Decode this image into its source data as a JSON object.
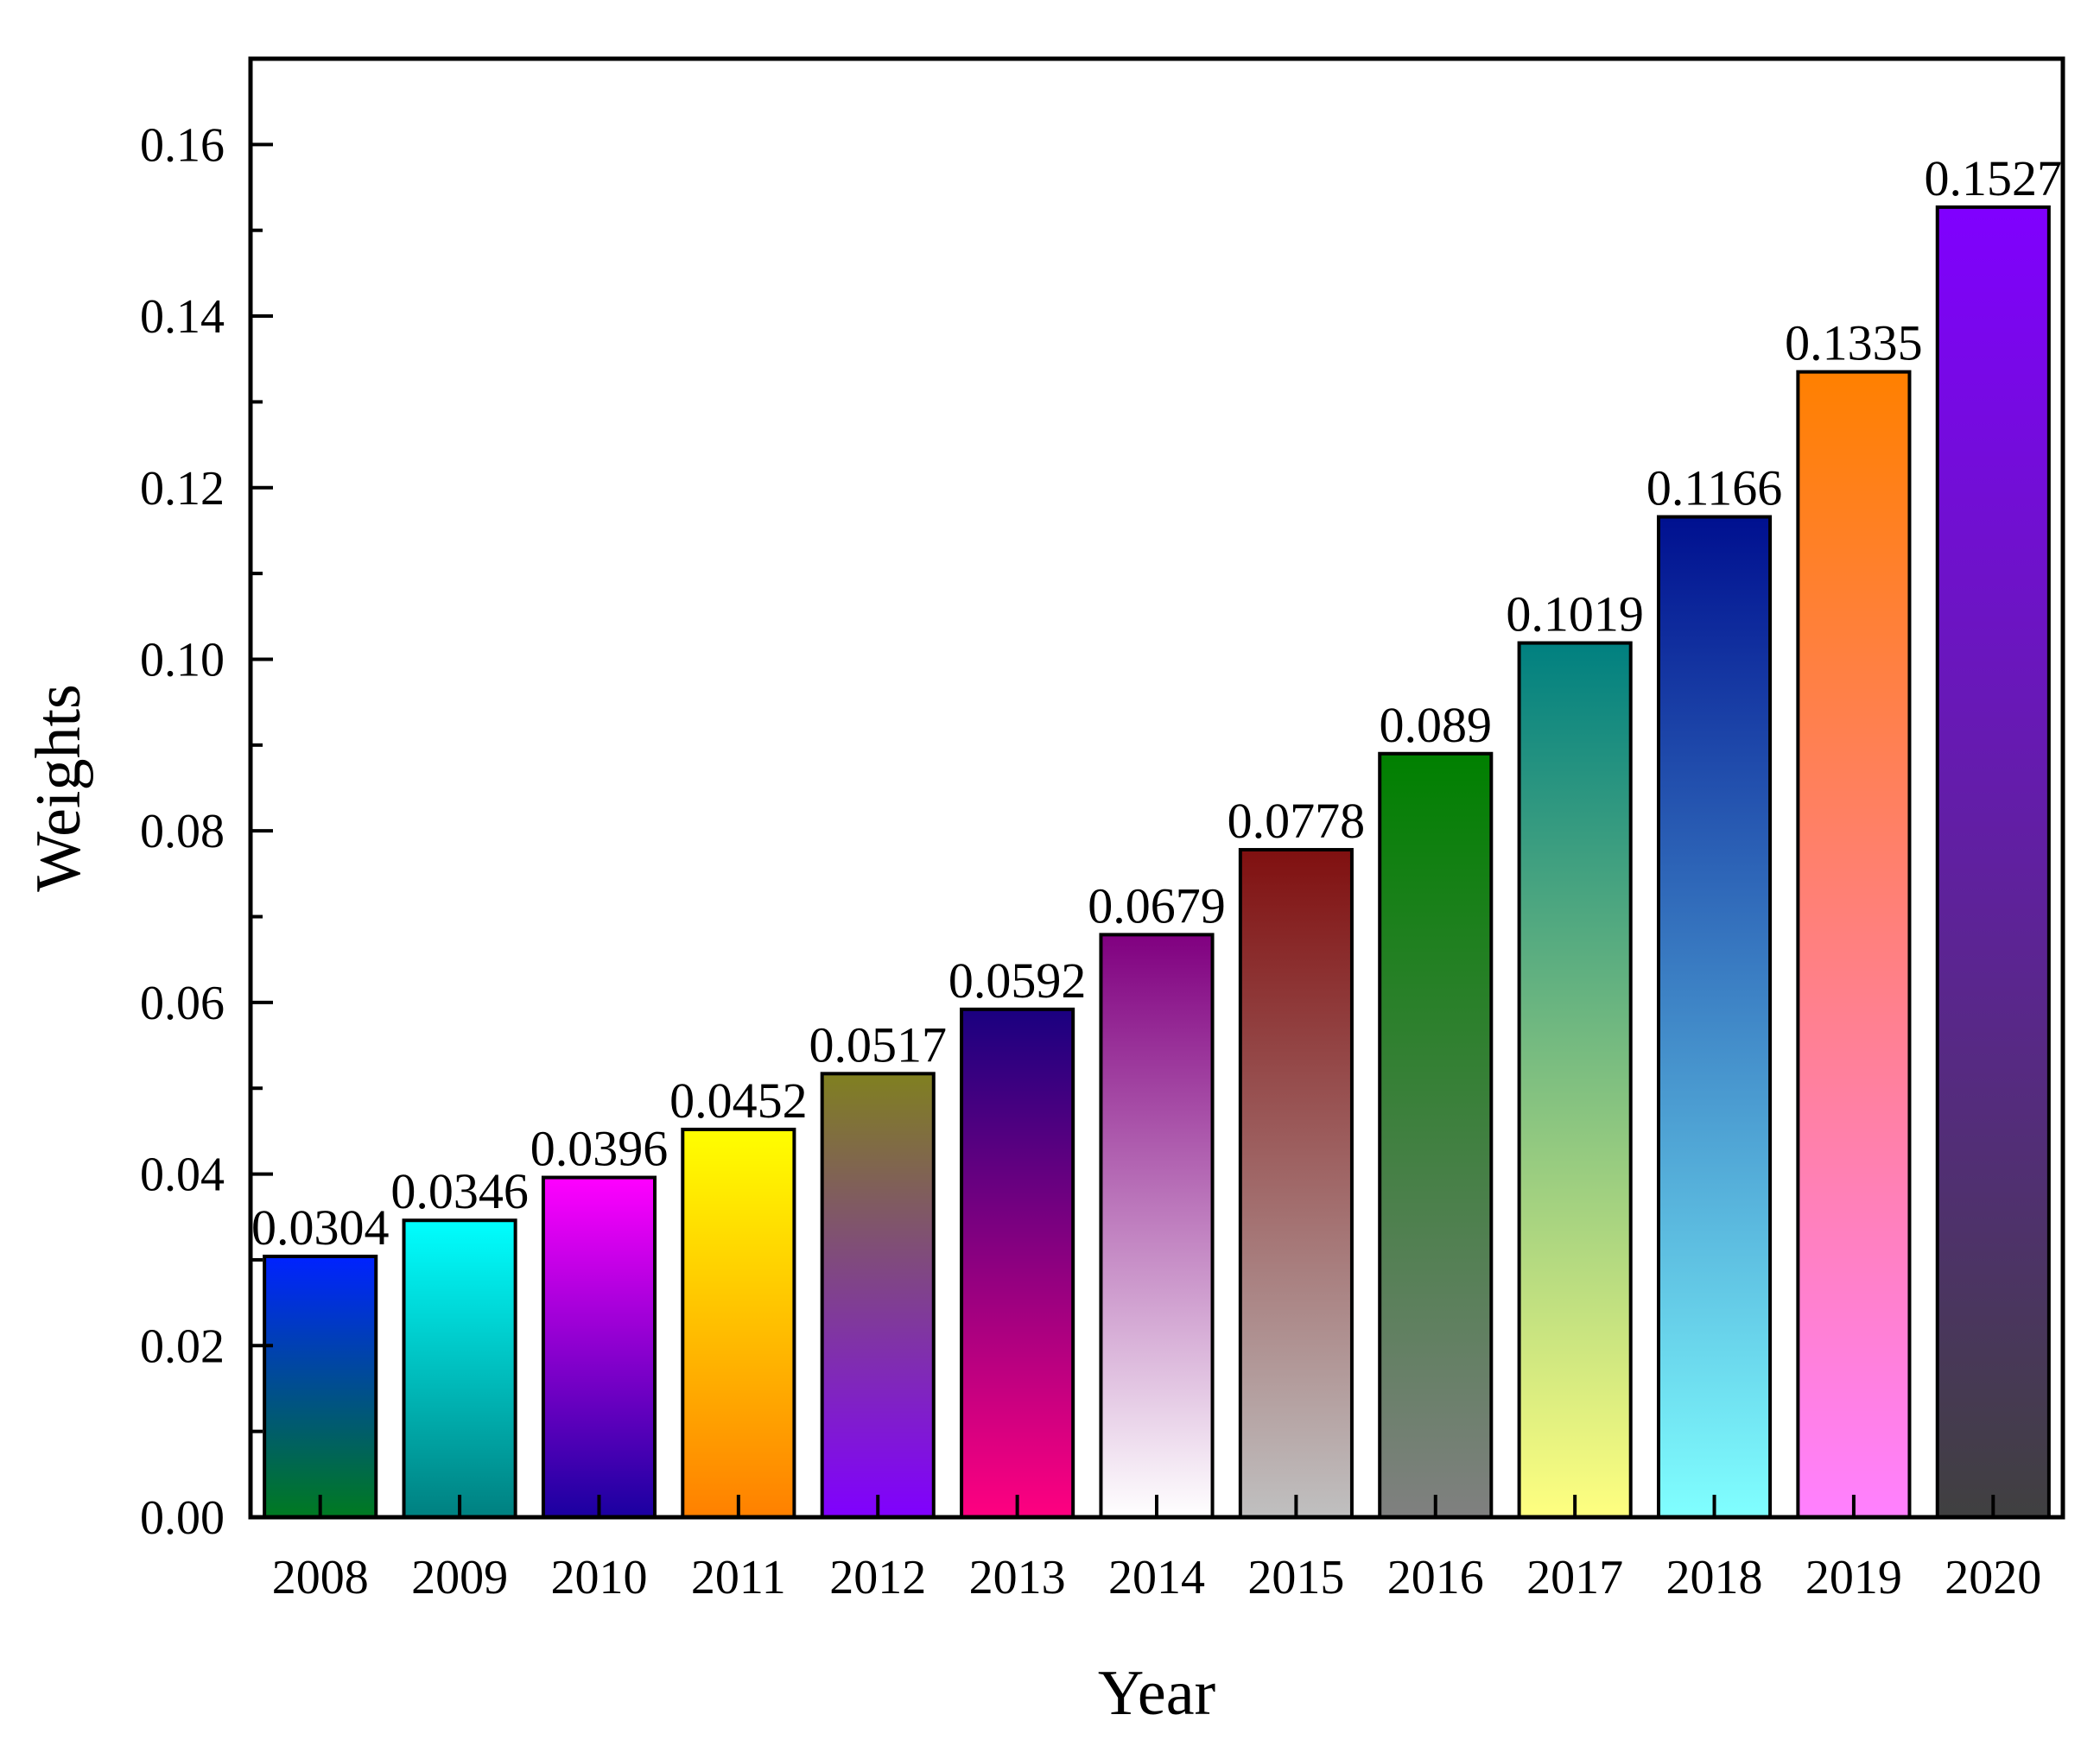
{
  "chart_data": {
    "type": "bar",
    "title": "",
    "xlabel": "Year",
    "ylabel": "Weights",
    "ylim": [
      0,
      0.17
    ],
    "yticks": [
      "0.00",
      "0.02",
      "0.04",
      "0.06",
      "0.08",
      "0.10",
      "0.12",
      "0.14",
      "0.16"
    ],
    "categories": [
      "2008",
      "2009",
      "2010",
      "2011",
      "2012",
      "2013",
      "2014",
      "2015",
      "2016",
      "2017",
      "2018",
      "2019",
      "2020"
    ],
    "values": [
      0.0304,
      0.0346,
      0.0396,
      0.0452,
      0.0517,
      0.0592,
      0.0679,
      0.0778,
      0.089,
      0.1019,
      0.1166,
      0.1335,
      0.1527
    ],
    "value_labels": [
      "0.0304",
      "0.0346",
      "0.0396",
      "0.0452",
      "0.0517",
      "0.0592",
      "0.0679",
      "0.0778",
      "0.089",
      "0.1019",
      "0.1166",
      "0.1335",
      "0.1527"
    ],
    "bar_gradients": [
      [
        "#0022ff",
        "#007a20"
      ],
      [
        "#00ffff",
        "#008080"
      ],
      [
        "#ff00ff",
        "#1a00a0"
      ],
      [
        "#ffff00",
        "#ff8000"
      ],
      [
        "#808020",
        "#8000ff"
      ],
      [
        "#1a0080",
        "#ff0080"
      ],
      [
        "#800080",
        "#ffffff"
      ],
      [
        "#801010",
        "#c0c0c0"
      ],
      [
        "#008000",
        "#808080"
      ],
      [
        "#008080",
        "#ffff80"
      ],
      [
        "#001090",
        "#80ffff"
      ],
      [
        "#ff8000",
        "#ff80ff"
      ],
      [
        "#8000ff",
        "#404040"
      ]
    ],
    "grid": false
  }
}
